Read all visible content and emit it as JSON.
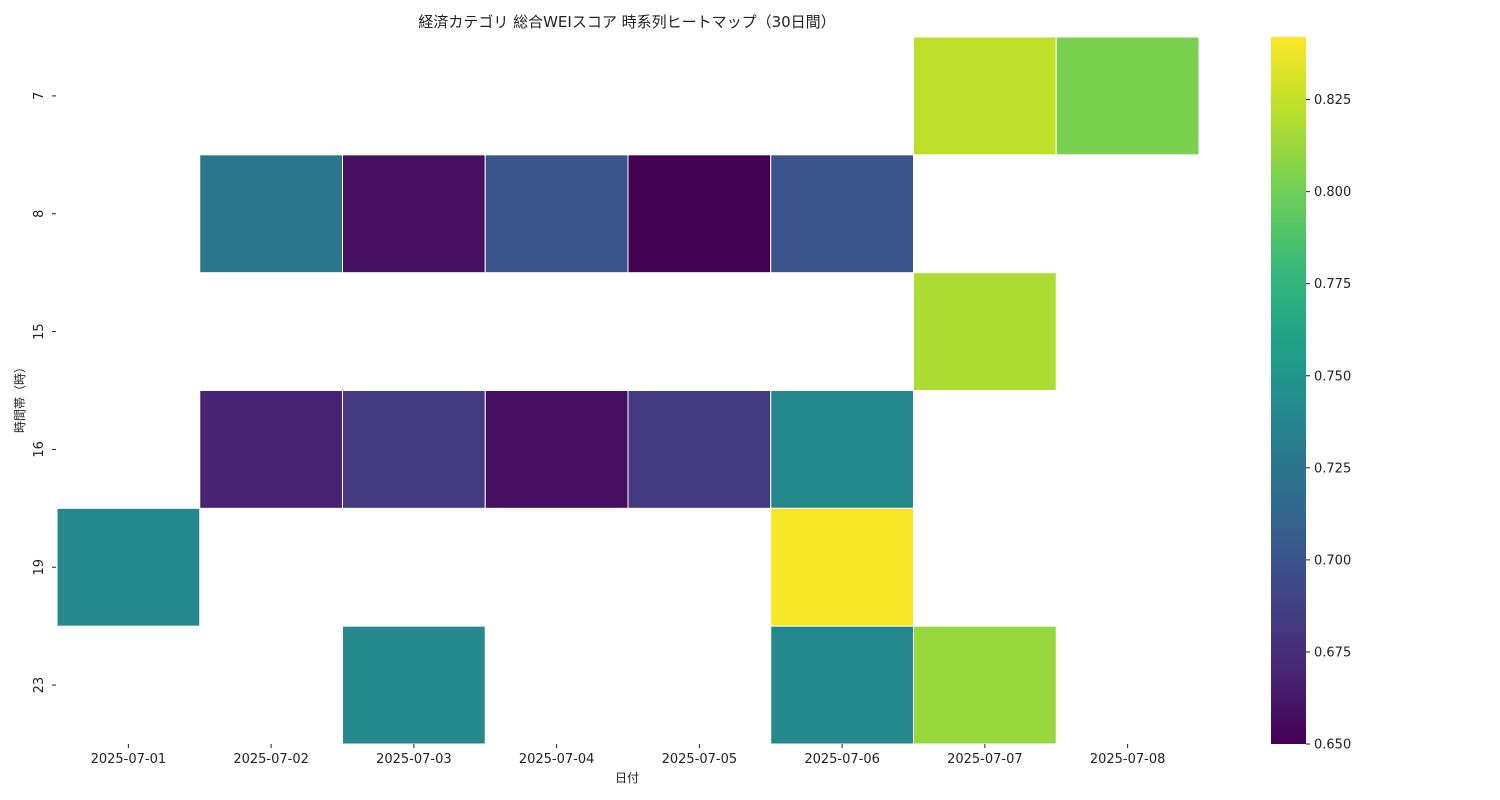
{
  "chart_data": {
    "type": "heatmap",
    "title": "経済カテゴリ 総合WEIスコア 時系列ヒートマップ（30日間）",
    "xlabel": "日付",
    "ylabel": "時間帯（時）",
    "x_categories": [
      "2025-07-01",
      "2025-07-02",
      "2025-07-03",
      "2025-07-04",
      "2025-07-05",
      "2025-07-06",
      "2025-07-07",
      "2025-07-08"
    ],
    "y_categories": [
      "7",
      "8",
      "15",
      "16",
      "19",
      "23"
    ],
    "values": [
      [
        null,
        null,
        null,
        null,
        null,
        null,
        0.823,
        0.803
      ],
      [
        null,
        0.726,
        0.658,
        0.7,
        0.65,
        0.7,
        null,
        null
      ],
      [
        null,
        null,
        null,
        null,
        null,
        null,
        0.818,
        null
      ],
      [
        null,
        0.668,
        0.682,
        0.657,
        0.682,
        0.74,
        null,
        null
      ],
      [
        0.74,
        null,
        null,
        null,
        null,
        0.84,
        null,
        null
      ],
      [
        null,
        null,
        0.74,
        null,
        null,
        0.74,
        0.812,
        null
      ]
    ],
    "colormap": "viridis",
    "colorbar": {
      "min": 0.65,
      "max": 0.842,
      "ticks": [
        0.65,
        0.675,
        0.7,
        0.725,
        0.75,
        0.775,
        0.8,
        0.825
      ]
    },
    "colorbar_tick_labels": [
      "0.650",
      "0.675",
      "0.700",
      "0.725",
      "0.750",
      "0.775",
      "0.800",
      "0.825"
    ],
    "grid": false
  }
}
